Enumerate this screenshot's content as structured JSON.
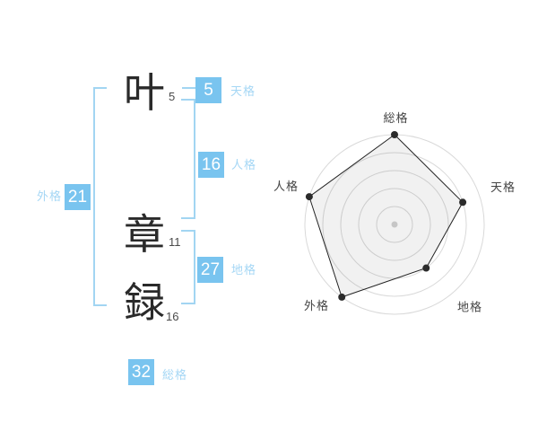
{
  "colors": {
    "box_blue": "#79c4ef",
    "label_blue": "#a5d7f5",
    "bracket_blue": "#a2d5f2",
    "kanji_color": "#2a2a2a",
    "grid_gray": "#d9d9d9",
    "polygon_line": "#222222",
    "point_color": "#2b2b2b",
    "center_dot": "#c6c6c6"
  },
  "name": {
    "characters": [
      {
        "glyph": "叶",
        "strokes": "5"
      },
      {
        "glyph": "章",
        "strokes": "11"
      },
      {
        "glyph": "録",
        "strokes": "16"
      }
    ]
  },
  "kaku": [
    {
      "id": "tenkaku",
      "label": "天格",
      "value": "5"
    },
    {
      "id": "jinkaku",
      "label": "人格",
      "value": "16"
    },
    {
      "id": "chikaku",
      "label": "地格",
      "value": "27"
    },
    {
      "id": "gaikaku",
      "label": "外格",
      "value": "21"
    },
    {
      "id": "soukaku",
      "label": "総格",
      "value": "32"
    }
  ],
  "chart_data": {
    "type": "radar",
    "axes": [
      "総格",
      "天格",
      "地格",
      "外格",
      "人格"
    ],
    "values": [
      5,
      4,
      3,
      5,
      5
    ],
    "max": 5,
    "rings": [
      1,
      2,
      3,
      4,
      5
    ],
    "start_angle_deg": -90,
    "direction": "clockwise",
    "grid": "concentric-circles",
    "legend": "none",
    "title": ""
  }
}
